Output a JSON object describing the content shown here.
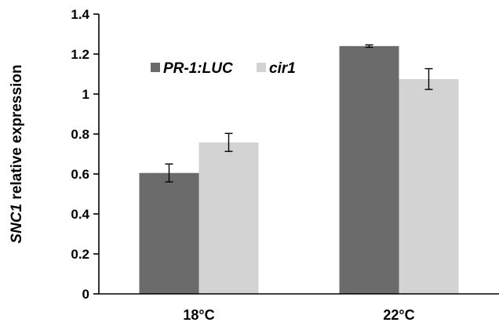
{
  "chart_data": {
    "type": "bar",
    "categories": [
      "18°C",
      "22°C"
    ],
    "series": [
      {
        "name": "PR-1:LUC",
        "values": [
          0.605,
          1.24
        ],
        "errors": [
          0.045,
          0.006
        ],
        "color": "#6b6b6b"
      },
      {
        "name": "cir1",
        "values": [
          0.758,
          1.075
        ],
        "errors": [
          0.045,
          0.052
        ],
        "color": "#d3d3d3"
      }
    ],
    "ylabel_italic": "SNC1",
    "ylabel_rest": " relative expression",
    "ylim": [
      0,
      1.4
    ],
    "yticks": [
      "0",
      "0.2",
      "0.4",
      "0.6",
      "0.8",
      "1",
      "1.2",
      "1.4"
    ],
    "grid": false,
    "legend_position": "top-left"
  }
}
